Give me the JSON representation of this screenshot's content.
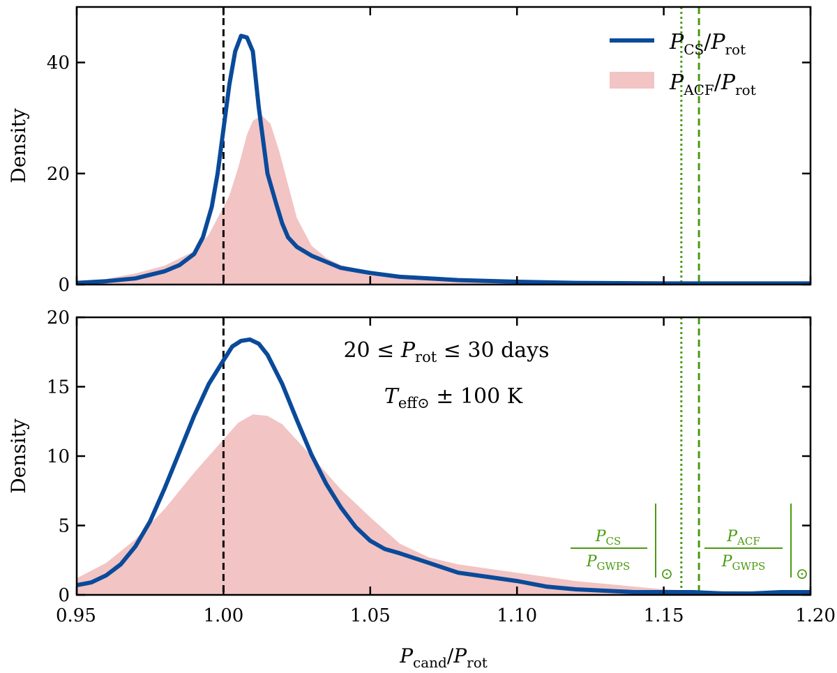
{
  "chart_data": [
    {
      "type": "line",
      "panel": "top",
      "title": "",
      "xlabel": "",
      "ylabel": "Density",
      "xlim": [
        0.95,
        1.2
      ],
      "ylim": [
        0,
        50
      ],
      "yticks": [
        "0",
        "20",
        "40"
      ],
      "ytick_values": [
        0,
        20,
        40
      ],
      "xtick_values": [
        0.95,
        1.0,
        1.05,
        1.1,
        1.15,
        1.2
      ],
      "legend": {
        "placement": "top-right",
        "entries": [
          {
            "main": "P",
            "sub": "CS",
            "slash": "/",
            "main2": "P",
            "sub2": "rot",
            "kind": "line"
          },
          {
            "main": "P",
            "sub": "ACF",
            "slash": "/",
            "main2": "P",
            "sub2": "rot",
            "kind": "patch"
          }
        ]
      },
      "series": [
        {
          "name": "P_CS/P_rot",
          "color": "#0a4a9a",
          "kind": "line",
          "x": [
            0.95,
            0.96,
            0.97,
            0.98,
            0.985,
            0.99,
            0.993,
            0.996,
            0.998,
            1.0,
            1.002,
            1.004,
            1.006,
            1.008,
            1.01,
            1.012,
            1.015,
            1.018,
            1.02,
            1.022,
            1.025,
            1.03,
            1.035,
            1.04,
            1.05,
            1.06,
            1.08,
            1.1,
            1.12,
            1.15,
            1.2
          ],
          "values": [
            0.3,
            0.6,
            1.1,
            2.4,
            3.5,
            5.5,
            8.5,
            14,
            20,
            28,
            36,
            42,
            44.8,
            44.5,
            42,
            32,
            20,
            14.5,
            11,
            8.5,
            6.8,
            5.2,
            4.1,
            3.0,
            2.1,
            1.4,
            0.8,
            0.5,
            0.3,
            0.2,
            0.2
          ]
        },
        {
          "name": "P_ACF/P_rot",
          "color": "#f2c4c4",
          "kind": "area",
          "x": [
            0.95,
            0.96,
            0.97,
            0.98,
            0.99,
            0.995,
            1.0,
            1.002,
            1.005,
            1.008,
            1.01,
            1.013,
            1.016,
            1.019,
            1.022,
            1.025,
            1.03,
            1.035,
            1.04,
            1.05,
            1.06,
            1.08,
            1.1,
            1.15,
            1.2
          ],
          "values": [
            0.5,
            1.0,
            2.0,
            3.4,
            6.0,
            9.0,
            14,
            16,
            21,
            27,
            29.5,
            30.5,
            29,
            24,
            18,
            12,
            7.0,
            4.8,
            3.5,
            2.3,
            1.6,
            0.9,
            0.5,
            0.2,
            0.1
          ]
        }
      ],
      "vlines": [
        {
          "x": 1.0,
          "style": "dashed",
          "color": "#000000"
        },
        {
          "x": 1.156,
          "style": "dotted",
          "color": "#4a9a10"
        },
        {
          "x": 1.162,
          "style": "dashed",
          "color": "#4a9a10"
        }
      ]
    },
    {
      "type": "line",
      "panel": "bottom",
      "title": "",
      "xlabel": "P_cand/P_rot",
      "ylabel": "Density",
      "xlim": [
        0.95,
        1.2
      ],
      "ylim": [
        0,
        20
      ],
      "yticks": [
        "0",
        "5",
        "10",
        "15",
        "20"
      ],
      "ytick_values": [
        0,
        5,
        10,
        15,
        20
      ],
      "xticks": [
        "0.95",
        "1.00",
        "1.05",
        "1.10",
        "1.15",
        "1.20"
      ],
      "xtick_values": [
        0.95,
        1.0,
        1.05,
        1.1,
        1.15,
        1.2
      ],
      "annotations": {
        "line1_left": "20 ≤ ",
        "line1_var": "P",
        "line1_sub": "rot",
        "line1_right": " ≤ 30 days",
        "line2_var": "T",
        "line2_sub": "eff⊙",
        "line2_right": " ± 100 K",
        "green_left_num": "P",
        "green_left_num_sub": "CS",
        "green_left_den": "P",
        "green_left_den_sub": "GWPS",
        "green_right_num": "P",
        "green_right_num_sub": "ACF",
        "green_right_den": "P",
        "green_right_den_sub": "GWPS",
        "sun_symbol": "⊙"
      },
      "series": [
        {
          "name": "P_CS/P_rot",
          "color": "#0a4a9a",
          "kind": "line",
          "x": [
            0.95,
            0.955,
            0.96,
            0.965,
            0.97,
            0.975,
            0.98,
            0.985,
            0.99,
            0.995,
            1.0,
            1.003,
            1.006,
            1.009,
            1.012,
            1.015,
            1.02,
            1.025,
            1.03,
            1.035,
            1.04,
            1.045,
            1.05,
            1.055,
            1.06,
            1.07,
            1.08,
            1.09,
            1.1,
            1.11,
            1.12,
            1.13,
            1.14,
            1.15,
            1.16,
            1.17,
            1.18,
            1.19,
            1.2
          ],
          "values": [
            0.7,
            0.9,
            1.4,
            2.2,
            3.5,
            5.3,
            7.7,
            10.3,
            12.9,
            15.2,
            16.9,
            17.9,
            18.3,
            18.4,
            18.1,
            17.3,
            15.2,
            12.6,
            10.1,
            8.0,
            6.3,
            4.9,
            3.9,
            3.3,
            3.0,
            2.3,
            1.6,
            1.3,
            1.0,
            0.6,
            0.4,
            0.3,
            0.2,
            0.2,
            0.2,
            0.1,
            0.1,
            0.2,
            0.2
          ]
        },
        {
          "name": "P_ACF/P_rot",
          "color": "#f2c4c4",
          "kind": "area",
          "x": [
            0.95,
            0.96,
            0.97,
            0.98,
            0.99,
            1.0,
            1.005,
            1.01,
            1.015,
            1.02,
            1.03,
            1.04,
            1.05,
            1.06,
            1.07,
            1.08,
            1.09,
            1.1,
            1.12,
            1.14,
            1.15,
            1.16,
            1.2
          ],
          "values": [
            1.2,
            2.3,
            4.0,
            6.2,
            8.8,
            11.2,
            12.4,
            13.0,
            12.9,
            12.3,
            10.0,
            7.6,
            5.6,
            3.7,
            2.7,
            2.2,
            1.9,
            1.6,
            1.0,
            0.6,
            0.4,
            0.3,
            0.2
          ]
        }
      ],
      "vlines": [
        {
          "x": 1.0,
          "style": "dashed",
          "color": "#000000"
        },
        {
          "x": 1.156,
          "style": "dotted",
          "color": "#4a9a10"
        },
        {
          "x": 1.162,
          "style": "dashed",
          "color": "#4a9a10"
        }
      ]
    }
  ],
  "xlabel_parts": {
    "var": "P",
    "sub": "cand",
    "slash": "/",
    "var2": "P",
    "sub2": "rot"
  }
}
